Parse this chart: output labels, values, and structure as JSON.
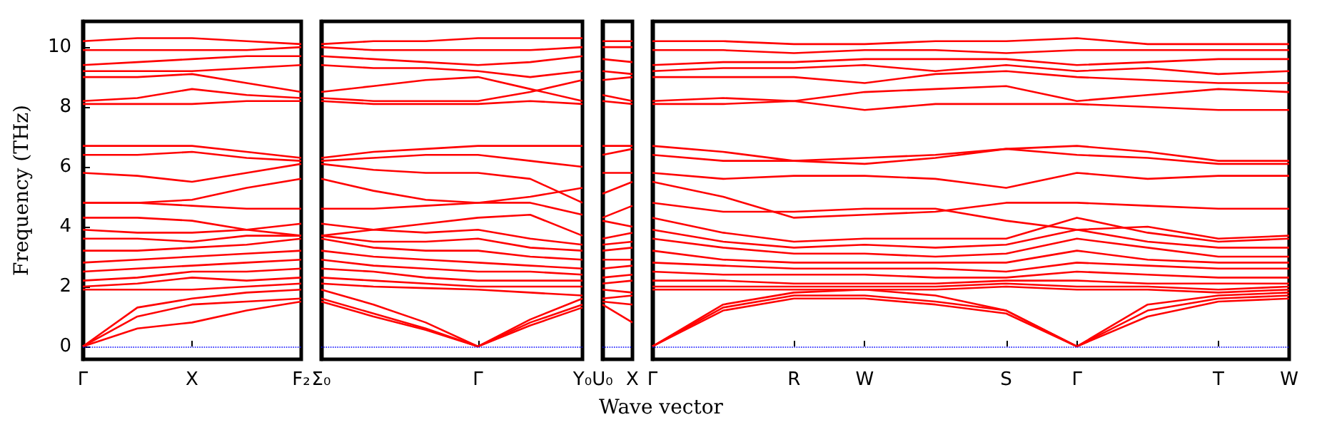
{
  "chart_data": [
    {
      "type": "line",
      "ylabel": "Frequency (THz)",
      "ylim": [
        -0.43,
        10.86
      ],
      "yticks": [
        0,
        2,
        4,
        6,
        8,
        10
      ],
      "categories": [
        "Γ",
        null,
        "X",
        null,
        "F₂"
      ],
      "ref_lines": [
        {
          "axis": "y",
          "value": 0,
          "color": "#0000ff",
          "line_style": "dotted"
        }
      ],
      "series": [
        {
          "color": "#ff0000",
          "values": [
            0,
            0.6,
            0.8,
            1.2,
            1.5
          ]
        },
        {
          "color": "#ff0000",
          "values": [
            0,
            1.0,
            1.4,
            1.5,
            1.6
          ]
        },
        {
          "color": "#ff0000",
          "values": [
            0,
            1.3,
            1.6,
            1.8,
            1.9
          ]
        },
        {
          "color": "#ff0000",
          "values": [
            1.9,
            1.9,
            1.9,
            2.0,
            2.1
          ]
        },
        {
          "color": "#ff0000",
          "values": [
            2.0,
            2.1,
            2.3,
            2.2,
            2.3
          ]
        },
        {
          "color": "#ff0000",
          "values": [
            2.2,
            2.3,
            2.5,
            2.5,
            2.6
          ]
        },
        {
          "color": "#ff0000",
          "values": [
            2.5,
            2.6,
            2.7,
            2.8,
            2.9
          ]
        },
        {
          "color": "#ff0000",
          "values": [
            2.8,
            2.9,
            3.0,
            3.1,
            3.2
          ]
        },
        {
          "color": "#ff0000",
          "values": [
            3.2,
            3.2,
            3.3,
            3.4,
            3.6
          ]
        },
        {
          "color": "#ff0000",
          "values": [
            3.6,
            3.6,
            3.5,
            3.7,
            3.7
          ]
        },
        {
          "color": "#ff0000",
          "values": [
            3.9,
            3.8,
            3.8,
            3.9,
            4.1
          ]
        },
        {
          "color": "#ff0000",
          "values": [
            4.3,
            4.3,
            4.2,
            3.9,
            3.7
          ]
        },
        {
          "color": "#ff0000",
          "values": [
            4.8,
            4.8,
            4.7,
            4.6,
            4.6
          ]
        },
        {
          "color": "#ff0000",
          "values": [
            4.8,
            4.8,
            4.9,
            5.3,
            5.6
          ]
        },
        {
          "color": "#ff0000",
          "values": [
            5.8,
            5.7,
            5.5,
            5.8,
            6.1
          ]
        },
        {
          "color": "#ff0000",
          "values": [
            6.4,
            6.4,
            6.5,
            6.3,
            6.2
          ]
        },
        {
          "color": "#ff0000",
          "values": [
            6.7,
            6.7,
            6.7,
            6.5,
            6.3
          ]
        },
        {
          "color": "#ff0000",
          "values": [
            8.1,
            8.1,
            8.1,
            8.2,
            8.2
          ]
        },
        {
          "color": "#ff0000",
          "values": [
            8.2,
            8.3,
            8.6,
            8.4,
            8.3
          ]
        },
        {
          "color": "#ff0000",
          "values": [
            9.0,
            9.0,
            9.1,
            8.8,
            8.5
          ]
        },
        {
          "color": "#ff0000",
          "values": [
            9.2,
            9.2,
            9.2,
            9.3,
            9.4
          ]
        },
        {
          "color": "#ff0000",
          "values": [
            9.4,
            9.5,
            9.6,
            9.7,
            9.7
          ]
        },
        {
          "color": "#ff0000",
          "values": [
            9.9,
            9.9,
            9.9,
            9.9,
            10.0
          ]
        },
        {
          "color": "#ff0000",
          "values": [
            10.2,
            10.3,
            10.3,
            10.2,
            10.1
          ]
        }
      ]
    },
    {
      "type": "line",
      "ylim": [
        -0.43,
        10.86
      ],
      "yticks": [
        0,
        2,
        4,
        6,
        8,
        10
      ],
      "categories": [
        "Σ₀",
        null,
        null,
        "Γ",
        null,
        "Y₀"
      ],
      "tick_labels": "x",
      "ref_lines": [
        {
          "axis": "y",
          "value": 0,
          "color": "#0000ff",
          "line_style": "dotted"
        }
      ],
      "series": [
        {
          "color": "#ff0000",
          "values": [
            1.5,
            1.0,
            0.55,
            0,
            0.7,
            1.3
          ]
        },
        {
          "color": "#ff0000",
          "values": [
            1.6,
            1.1,
            0.6,
            0,
            0.8,
            1.4
          ]
        },
        {
          "color": "#ff0000",
          "values": [
            1.9,
            1.4,
            0.8,
            0,
            0.9,
            1.6
          ]
        },
        {
          "color": "#ff0000",
          "values": [
            2.1,
            2.0,
            1.95,
            1.9,
            1.8,
            1.7
          ]
        },
        {
          "color": "#ff0000",
          "values": [
            2.3,
            2.2,
            2.1,
            2.0,
            2.0,
            2.0
          ]
        },
        {
          "color": "#ff0000",
          "values": [
            2.6,
            2.5,
            2.3,
            2.2,
            2.2,
            2.2
          ]
        },
        {
          "color": "#ff0000",
          "values": [
            2.9,
            2.7,
            2.6,
            2.5,
            2.5,
            2.4
          ]
        },
        {
          "color": "#ff0000",
          "values": [
            3.2,
            3.0,
            2.9,
            2.8,
            2.7,
            2.6
          ]
        },
        {
          "color": "#ff0000",
          "values": [
            3.6,
            3.3,
            3.2,
            3.2,
            3.0,
            2.9
          ]
        },
        {
          "color": "#ff0000",
          "values": [
            3.7,
            3.5,
            3.5,
            3.6,
            3.3,
            3.2
          ]
        },
        {
          "color": "#ff0000",
          "values": [
            4.1,
            3.9,
            3.8,
            3.9,
            3.6,
            3.4
          ]
        },
        {
          "color": "#ff0000",
          "values": [
            3.7,
            3.9,
            4.1,
            4.3,
            4.4,
            3.7
          ]
        },
        {
          "color": "#ff0000",
          "values": [
            4.6,
            4.6,
            4.7,
            4.8,
            4.8,
            4.4
          ]
        },
        {
          "color": "#ff0000",
          "values": [
            5.6,
            5.2,
            4.9,
            4.8,
            5.0,
            5.3
          ]
        },
        {
          "color": "#ff0000",
          "values": [
            6.1,
            5.9,
            5.8,
            5.8,
            5.6,
            4.8
          ]
        },
        {
          "color": "#ff0000",
          "values": [
            6.2,
            6.3,
            6.4,
            6.4,
            6.2,
            6.0
          ]
        },
        {
          "color": "#ff0000",
          "values": [
            6.3,
            6.5,
            6.6,
            6.7,
            6.7,
            6.7
          ]
        },
        {
          "color": "#ff0000",
          "values": [
            8.2,
            8.1,
            8.1,
            8.1,
            8.2,
            8.1
          ]
        },
        {
          "color": "#ff0000",
          "values": [
            8.3,
            8.2,
            8.2,
            8.2,
            8.5,
            8.9
          ]
        },
        {
          "color": "#ff0000",
          "values": [
            8.5,
            8.7,
            8.9,
            9.0,
            8.6,
            8.2
          ]
        },
        {
          "color": "#ff0000",
          "values": [
            9.4,
            9.3,
            9.3,
            9.2,
            9.0,
            9.2
          ]
        },
        {
          "color": "#ff0000",
          "values": [
            9.7,
            9.6,
            9.5,
            9.4,
            9.5,
            9.7
          ]
        },
        {
          "color": "#ff0000",
          "values": [
            10.0,
            9.9,
            9.9,
            9.9,
            9.9,
            10.0
          ]
        },
        {
          "color": "#ff0000",
          "values": [
            10.1,
            10.2,
            10.2,
            10.3,
            10.3,
            10.3
          ]
        }
      ]
    },
    {
      "type": "line",
      "ylim": [
        -0.43,
        10.86
      ],
      "yticks": [
        0,
        2,
        4,
        6,
        8,
        10
      ],
      "categories": [
        "U₀",
        "X"
      ],
      "tick_labels": "x",
      "ref_lines": [
        {
          "axis": "y",
          "value": 0,
          "color": "#0000ff",
          "line_style": "dotted"
        }
      ],
      "series": [
        {
          "color": "#ff0000",
          "values": [
            1.4,
            0.8
          ]
        },
        {
          "color": "#ff0000",
          "values": [
            1.5,
            1.4
          ]
        },
        {
          "color": "#ff0000",
          "values": [
            1.6,
            1.7
          ]
        },
        {
          "color": "#ff0000",
          "values": [
            1.9,
            1.8
          ]
        },
        {
          "color": "#ff0000",
          "values": [
            2.1,
            2.2
          ]
        },
        {
          "color": "#ff0000",
          "values": [
            2.3,
            2.4
          ]
        },
        {
          "color": "#ff0000",
          "values": [
            2.6,
            2.7
          ]
        },
        {
          "color": "#ff0000",
          "values": [
            2.9,
            2.9
          ]
        },
        {
          "color": "#ff0000",
          "values": [
            3.2,
            3.3
          ]
        },
        {
          "color": "#ff0000",
          "values": [
            3.4,
            3.5
          ]
        },
        {
          "color": "#ff0000",
          "values": [
            3.6,
            3.8
          ]
        },
        {
          "color": "#ff0000",
          "values": [
            4.2,
            4.0
          ]
        },
        {
          "color": "#ff0000",
          "values": [
            4.3,
            4.7
          ]
        },
        {
          "color": "#ff0000",
          "values": [
            5.1,
            5.5
          ]
        },
        {
          "color": "#ff0000",
          "values": [
            5.8,
            5.8
          ]
        },
        {
          "color": "#ff0000",
          "values": [
            6.4,
            6.6
          ]
        },
        {
          "color": "#ff0000",
          "values": [
            6.7,
            6.7
          ]
        },
        {
          "color": "#ff0000",
          "values": [
            8.2,
            8.1
          ]
        },
        {
          "color": "#ff0000",
          "values": [
            8.4,
            8.2
          ]
        },
        {
          "color": "#ff0000",
          "values": [
            8.9,
            9.0
          ]
        },
        {
          "color": "#ff0000",
          "values": [
            9.2,
            9.1
          ]
        },
        {
          "color": "#ff0000",
          "values": [
            9.6,
            9.5
          ]
        },
        {
          "color": "#ff0000",
          "values": [
            10.0,
            10.0
          ]
        },
        {
          "color": "#ff0000",
          "values": [
            10.2,
            10.2
          ]
        }
      ]
    },
    {
      "type": "line",
      "xlabel": "Wave vector",
      "ylim": [
        -0.43,
        10.86
      ],
      "yticks": [
        0,
        2,
        4,
        6,
        8,
        10
      ],
      "categories": [
        "Γ",
        null,
        "R",
        "W",
        null,
        "S",
        "Γ",
        null,
        "T",
        "W"
      ],
      "tick_labels": "x",
      "ref_lines": [
        {
          "axis": "y",
          "value": 0,
          "color": "#0000ff",
          "line_style": "dotted"
        }
      ],
      "series": [
        {
          "color": "#ff0000",
          "values": [
            0,
            1.2,
            1.6,
            1.6,
            1.4,
            1.1,
            0,
            1.0,
            1.5,
            1.6
          ]
        },
        {
          "color": "#ff0000",
          "values": [
            0,
            1.3,
            1.7,
            1.7,
            1.5,
            1.2,
            0,
            1.2,
            1.6,
            1.7
          ]
        },
        {
          "color": "#ff0000",
          "values": [
            0,
            1.4,
            1.8,
            1.9,
            1.7,
            1.2,
            0,
            1.4,
            1.7,
            1.8
          ]
        },
        {
          "color": "#ff0000",
          "values": [
            1.9,
            1.9,
            1.9,
            1.9,
            1.9,
            2.0,
            1.9,
            1.9,
            1.8,
            1.9
          ]
        },
        {
          "color": "#ff0000",
          "values": [
            2.0,
            2.0,
            2.0,
            2.0,
            2.0,
            2.1,
            2.0,
            2.0,
            1.9,
            2.0
          ]
        },
        {
          "color": "#ff0000",
          "values": [
            2.2,
            2.2,
            2.1,
            2.1,
            2.1,
            2.2,
            2.2,
            2.1,
            2.1,
            2.1
          ]
        },
        {
          "color": "#ff0000",
          "values": [
            2.5,
            2.4,
            2.4,
            2.4,
            2.3,
            2.3,
            2.5,
            2.4,
            2.3,
            2.3
          ]
        },
        {
          "color": "#ff0000",
          "values": [
            2.8,
            2.7,
            2.6,
            2.6,
            2.6,
            2.5,
            2.8,
            2.7,
            2.6,
            2.6
          ]
        },
        {
          "color": "#ff0000",
          "values": [
            3.2,
            2.9,
            2.8,
            2.8,
            2.8,
            2.8,
            3.2,
            2.9,
            2.8,
            2.8
          ]
        },
        {
          "color": "#ff0000",
          "values": [
            3.6,
            3.3,
            3.1,
            3.1,
            3.0,
            3.1,
            3.6,
            3.3,
            3.0,
            3.0
          ]
        },
        {
          "color": "#ff0000",
          "values": [
            3.9,
            3.5,
            3.3,
            3.4,
            3.3,
            3.4,
            3.9,
            3.5,
            3.3,
            3.3
          ]
        },
        {
          "color": "#ff0000",
          "values": [
            4.3,
            3.8,
            3.5,
            3.6,
            3.6,
            3.6,
            4.3,
            3.8,
            3.5,
            3.6
          ]
        },
        {
          "color": "#ff0000",
          "values": [
            4.8,
            4.5,
            4.5,
            4.6,
            4.6,
            4.2,
            3.9,
            4.0,
            3.6,
            3.7
          ]
        },
        {
          "color": "#ff0000",
          "values": [
            5.5,
            5.0,
            4.3,
            4.4,
            4.5,
            4.8,
            4.8,
            4.7,
            4.6,
            4.6
          ]
        },
        {
          "color": "#ff0000",
          "values": [
            5.8,
            5.6,
            5.7,
            5.7,
            5.6,
            5.3,
            5.8,
            5.6,
            5.7,
            5.7
          ]
        },
        {
          "color": "#ff0000",
          "values": [
            6.4,
            6.2,
            6.2,
            6.1,
            6.3,
            6.6,
            6.4,
            6.3,
            6.1,
            6.1
          ]
        },
        {
          "color": "#ff0000",
          "values": [
            6.7,
            6.5,
            6.2,
            6.3,
            6.4,
            6.6,
            6.7,
            6.5,
            6.2,
            6.2
          ]
        },
        {
          "color": "#ff0000",
          "values": [
            8.1,
            8.1,
            8.2,
            7.9,
            8.1,
            8.1,
            8.1,
            8.0,
            7.9,
            7.9
          ]
        },
        {
          "color": "#ff0000",
          "values": [
            8.2,
            8.3,
            8.2,
            8.5,
            8.6,
            8.7,
            8.2,
            8.4,
            8.6,
            8.5
          ]
        },
        {
          "color": "#ff0000",
          "values": [
            9.0,
            9.0,
            9.0,
            8.8,
            9.1,
            9.2,
            9.0,
            8.9,
            8.8,
            8.8
          ]
        },
        {
          "color": "#ff0000",
          "values": [
            9.2,
            9.3,
            9.3,
            9.4,
            9.2,
            9.4,
            9.2,
            9.3,
            9.1,
            9.2
          ]
        },
        {
          "color": "#ff0000",
          "values": [
            9.4,
            9.5,
            9.5,
            9.6,
            9.6,
            9.6,
            9.4,
            9.5,
            9.6,
            9.6
          ]
        },
        {
          "color": "#ff0000",
          "values": [
            9.9,
            9.9,
            9.8,
            9.9,
            9.9,
            9.8,
            9.9,
            9.9,
            9.9,
            9.9
          ]
        },
        {
          "color": "#ff0000",
          "values": [
            10.2,
            10.2,
            10.1,
            10.1,
            10.2,
            10.2,
            10.3,
            10.1,
            10.1,
            10.1
          ]
        }
      ]
    }
  ]
}
